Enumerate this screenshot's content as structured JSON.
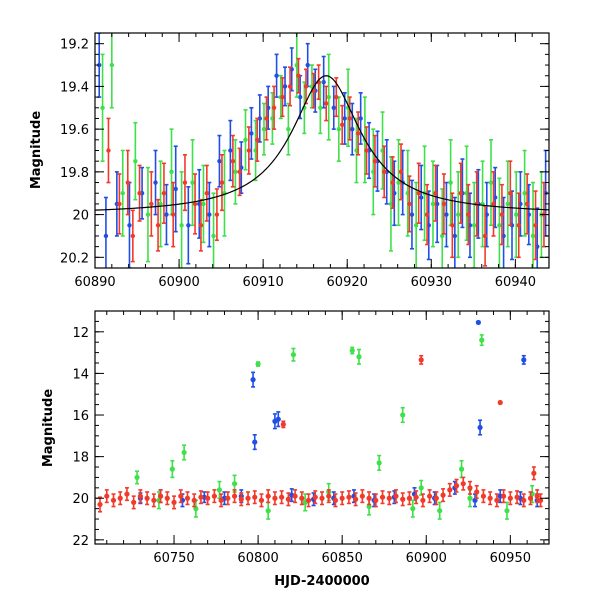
{
  "chart_data": [
    {
      "type": "scatter",
      "panel": "top",
      "title": "",
      "xlabel": "",
      "ylabel": "Magnitude",
      "xlim": [
        60890,
        60944
      ],
      "ylim": [
        20.25,
        19.15
      ],
      "y_inverted": true,
      "x_ticks": [
        60890,
        60900,
        60910,
        60920,
        60930,
        60940
      ],
      "x_tick_labels": [
        "60890",
        "60900",
        "60910",
        "60920",
        "60930",
        "60940"
      ],
      "y_ticks": [
        19.2,
        19.4,
        19.6,
        19.8,
        20,
        20.2
      ],
      "y_tick_labels": [
        "19.2",
        "19.4",
        "19.6",
        "19.8",
        "20",
        "20.2"
      ],
      "legend": "none",
      "model_curve": {
        "name": "microlensing model",
        "color": "#000000",
        "baseline": 20.0,
        "peak_mag": 19.35,
        "peak_time": 60917.5,
        "timescale": 5.0
      },
      "series": [
        {
          "name": "blue",
          "color": "#1f4fe6",
          "x": [
            60890.5,
            60891.3,
            60892.6,
            60894.1,
            60895.6,
            60897.2,
            60898.5,
            60899.6,
            60901.1,
            60902.4,
            60903.6,
            60904.8,
            60906.1,
            60907.4,
            60908.6,
            60909.6,
            60910.6,
            60911.6,
            60912.6,
            60913.4,
            60914.4,
            60915.3,
            60916.2,
            60917.2,
            60918.4,
            60919.7,
            60920.6,
            60921.6,
            60922.6,
            60923.6,
            60924.7,
            60925.6,
            60926.6,
            60927.7,
            60928.8,
            60929.7,
            60930.7,
            60931.8,
            60932.8,
            60933.7,
            60934.6,
            60935.6,
            60936.6,
            60937.6,
            60938.6,
            60939.6,
            60940.6,
            60941.6,
            60942.6,
            60943.6
          ],
          "y": [
            19.3,
            20.1,
            19.95,
            20.05,
            19.9,
            19.85,
            20.0,
            19.88,
            20.05,
            19.95,
            20.0,
            19.75,
            19.7,
            19.78,
            19.62,
            19.55,
            19.5,
            19.35,
            19.4,
            19.32,
            19.45,
            19.3,
            19.42,
            19.38,
            19.5,
            19.55,
            19.6,
            19.55,
            19.7,
            19.75,
            19.8,
            19.9,
            19.85,
            20.0,
            19.92,
            20.05,
            19.95,
            20.0,
            20.1,
            19.9,
            20.05,
            19.95,
            20.0,
            19.92,
            20.1,
            20.05,
            19.95,
            20.0,
            20.15,
            19.9
          ],
          "yerr": [
            0.15,
            0.18,
            0.15,
            0.2,
            0.12,
            0.15,
            0.14,
            0.2,
            0.18,
            0.16,
            0.15,
            0.12,
            0.14,
            0.12,
            0.12,
            0.11,
            0.1,
            0.1,
            0.09,
            0.1,
            0.1,
            0.1,
            0.1,
            0.12,
            0.1,
            0.12,
            0.12,
            0.12,
            0.13,
            0.14,
            0.15,
            0.15,
            0.15,
            0.16,
            0.15,
            0.16,
            0.18,
            0.15,
            0.18,
            0.16,
            0.15,
            0.16,
            0.15,
            0.14,
            0.18,
            0.16,
            0.15,
            0.14,
            0.18,
            0.2
          ]
        },
        {
          "name": "green",
          "color": "#3fe04a",
          "x": [
            60890.9,
            60892.0,
            60893.3,
            60894.8,
            60896.3,
            60897.8,
            60899.1,
            60900.3,
            60901.6,
            60902.9,
            60904.1,
            60905.4,
            60906.7,
            60907.9,
            60909.1,
            60910.1,
            60911.1,
            60912.1,
            60913.0,
            60914.0,
            60914.9,
            60915.8,
            60916.8,
            60917.8,
            60919.0,
            60920.1,
            60921.1,
            60922.1,
            60923.1,
            60924.2,
            60925.2,
            60926.1,
            60927.2,
            60928.2,
            60929.2,
            60930.2,
            60931.3,
            60932.3,
            60933.2,
            60934.2,
            60935.1,
            60936.1,
            60937.1,
            60938.1,
            60939.1,
            60940.1,
            60941.1,
            60942.1,
            60943.1
          ],
          "y": [
            19.5,
            19.3,
            19.9,
            19.75,
            20.0,
            19.95,
            19.8,
            20.05,
            19.85,
            19.95,
            20.1,
            19.9,
            19.8,
            19.65,
            19.7,
            19.6,
            19.55,
            19.45,
            19.6,
            19.3,
            19.5,
            19.4,
            19.5,
            19.45,
            19.6,
            19.5,
            19.7,
            19.65,
            19.8,
            19.7,
            19.95,
            19.85,
            19.9,
            20.05,
            19.9,
            19.95,
            20.1,
            19.85,
            20.0,
            19.9,
            20.05,
            19.95,
            19.85,
            20.05,
            19.95,
            20.0,
            19.9,
            20.1,
            20.0
          ],
          "yerr": [
            0.25,
            0.2,
            0.2,
            0.18,
            0.22,
            0.2,
            0.2,
            0.25,
            0.2,
            0.18,
            0.2,
            0.2,
            0.15,
            0.14,
            0.14,
            0.12,
            0.12,
            0.1,
            0.12,
            0.15,
            0.12,
            0.1,
            0.12,
            0.2,
            0.15,
            0.18,
            0.15,
            0.2,
            0.2,
            0.18,
            0.22,
            0.2,
            0.2,
            0.2,
            0.22,
            0.2,
            0.22,
            0.2,
            0.2,
            0.22,
            0.2,
            0.2,
            0.2,
            0.22,
            0.2,
            0.2,
            0.2,
            0.25,
            0.2
          ]
        },
        {
          "name": "red",
          "color": "#f23a2a",
          "x": [
            60891.6,
            60892.9,
            60893.9,
            60894.5,
            60895.3,
            60896.7,
            60897.5,
            60898.2,
            60899.3,
            60900.7,
            60901.9,
            60902.6,
            60903.3,
            60904.5,
            60905.1,
            60906.4,
            60907.2,
            60908.3,
            60909.3,
            60910.4,
            60911.3,
            60912.3,
            60913.2,
            60914.2,
            60915.1,
            60916.0,
            60916.6,
            60917.5,
            60918.7,
            60919.4,
            60920.3,
            60921.3,
            60922.3,
            60923.3,
            60924.4,
            60925.4,
            60926.4,
            60927.4,
            60928.5,
            60929.5,
            60930.5,
            60931.5,
            60932.5,
            60933.5,
            60934.4,
            60935.4,
            60936.4,
            60937.4,
            60938.4,
            60939.4,
            60940.4,
            60941.4,
            60942.4,
            60943.4
          ],
          "y": [
            19.7,
            19.95,
            19.85,
            20.1,
            19.9,
            19.95,
            20.05,
            19.9,
            20.0,
            19.85,
            19.95,
            20.05,
            19.9,
            20.0,
            19.85,
            19.75,
            19.8,
            19.7,
            19.65,
            19.55,
            19.5,
            19.45,
            19.4,
            19.35,
            19.4,
            19.42,
            19.38,
            19.48,
            19.45,
            19.58,
            19.55,
            19.62,
            19.7,
            19.75,
            19.8,
            19.85,
            19.8,
            19.95,
            19.9,
            20.0,
            19.9,
            19.95,
            20.05,
            19.9,
            20.0,
            19.95,
            20.1,
            19.95,
            20.0,
            19.9,
            20.05,
            19.95,
            20.05,
            20.0
          ],
          "yerr": [
            0.15,
            0.14,
            0.15,
            0.12,
            0.13,
            0.15,
            0.12,
            0.14,
            0.15,
            0.13,
            0.14,
            0.12,
            0.13,
            0.12,
            0.13,
            0.12,
            0.11,
            0.11,
            0.1,
            0.1,
            0.1,
            0.09,
            0.09,
            0.08,
            0.08,
            0.08,
            0.08,
            0.08,
            0.09,
            0.09,
            0.1,
            0.1,
            0.11,
            0.12,
            0.12,
            0.12,
            0.13,
            0.13,
            0.14,
            0.14,
            0.13,
            0.14,
            0.15,
            0.14,
            0.14,
            0.15,
            0.14,
            0.15,
            0.14,
            0.15,
            0.15,
            0.14,
            0.16,
            0.15
          ]
        }
      ]
    },
    {
      "type": "scatter",
      "panel": "bottom",
      "title": "",
      "xlabel": "HJD-2400000",
      "ylabel": "Magnitude",
      "xlim": [
        60703,
        60973
      ],
      "ylim": [
        22.2,
        11.0
      ],
      "y_inverted": true,
      "x_ticks": [
        60750,
        60800,
        60850,
        60900,
        60950
      ],
      "x_tick_labels": [
        "60750",
        "60800",
        "60850",
        "60900",
        "60950"
      ],
      "y_ticks": [
        12,
        14,
        16,
        18,
        20,
        22
      ],
      "y_tick_labels": [
        "12",
        "14",
        "16",
        "18",
        "20",
        "22"
      ],
      "legend": "none",
      "series": [
        {
          "name": "blue",
          "color": "#1f4fe6",
          "x": [
            60730,
            60742,
            60755,
            60768,
            60780,
            60790,
            60797,
            60798,
            60810,
            60812,
            60820,
            60833,
            60845,
            60857,
            60869,
            60881,
            60893,
            60905,
            60917,
            60929,
            60931,
            60932,
            60944,
            60956,
            60958,
            60966
          ],
          "y": [
            20.0,
            19.9,
            20.1,
            19.95,
            20.0,
            19.9,
            14.3,
            17.3,
            16.3,
            16.2,
            19.85,
            20.05,
            20.0,
            19.9,
            20.1,
            19.95,
            19.8,
            20.0,
            19.5,
            20.1,
            11.55,
            16.6,
            19.9,
            20.0,
            13.35,
            20.1
          ],
          "yerr": [
            0.25,
            0.3,
            0.3,
            0.25,
            0.3,
            0.3,
            0.35,
            0.35,
            0.35,
            0.35,
            0.3,
            0.3,
            0.3,
            0.3,
            0.3,
            0.3,
            0.3,
            0.3,
            0.3,
            0.3,
            0.05,
            0.35,
            0.3,
            0.3,
            0.2,
            0.3
          ]
        },
        {
          "name": "green",
          "color": "#3fe04a",
          "x": [
            60728,
            60741,
            60749,
            60756,
            60763,
            60777,
            60786,
            60800,
            60806,
            60821,
            60828,
            60842,
            60856,
            60860,
            60866,
            60872,
            60886,
            60892,
            60897,
            60908,
            60921,
            60926,
            60933,
            60948,
            60963
          ],
          "y": [
            19.0,
            20.1,
            18.6,
            17.8,
            20.5,
            19.6,
            19.3,
            13.55,
            20.6,
            13.1,
            20.2,
            19.7,
            12.9,
            13.2,
            20.4,
            18.3,
            16.0,
            20.5,
            19.5,
            20.6,
            18.6,
            20.0,
            12.4,
            20.6,
            19.8
          ],
          "yerr": [
            0.3,
            0.4,
            0.4,
            0.35,
            0.4,
            0.4,
            0.4,
            0.1,
            0.4,
            0.3,
            0.4,
            0.4,
            0.15,
            0.35,
            0.4,
            0.35,
            0.35,
            0.4,
            0.35,
            0.4,
            0.4,
            0.4,
            0.25,
            0.4,
            0.4
          ]
        },
        {
          "name": "red",
          "color": "#f23a2a",
          "x": [
            60706,
            60710,
            60714,
            60718,
            60722,
            60726,
            60730,
            60734,
            60738,
            60742,
            60746,
            60750,
            60754,
            60758,
            60762,
            60766,
            60770,
            60774,
            60778,
            60782,
            60786,
            60790,
            60794,
            60798,
            60802,
            60806,
            60810,
            60814,
            60815,
            60818,
            60822,
            60826,
            60830,
            60834,
            60838,
            60842,
            60846,
            60850,
            60854,
            60858,
            60862,
            60866,
            60870,
            60874,
            60878,
            60882,
            60886,
            60890,
            60894,
            60897,
            60898,
            60902,
            60906,
            60910,
            60914,
            60918,
            60922,
            60926,
            60930,
            60934,
            60938,
            60942,
            60944,
            60946,
            60950,
            60954,
            60958,
            60962,
            60964,
            60966,
            60968
          ],
          "y": [
            20.3,
            19.9,
            20.1,
            20.0,
            19.8,
            20.2,
            19.9,
            20.0,
            20.1,
            19.9,
            20.0,
            20.2,
            19.9,
            20.0,
            20.1,
            19.95,
            20.0,
            19.9,
            20.1,
            20.0,
            19.9,
            20.05,
            20.0,
            19.95,
            20.1,
            19.9,
            20.0,
            19.95,
            16.45,
            20.05,
            19.9,
            20.0,
            20.1,
            19.95,
            20.0,
            19.9,
            20.1,
            20.0,
            19.95,
            20.05,
            19.9,
            20.0,
            20.1,
            19.95,
            20.0,
            19.9,
            20.05,
            20.0,
            19.95,
            13.35,
            20.1,
            19.9,
            20.0,
            19.85,
            19.6,
            19.4,
            19.3,
            19.5,
            19.7,
            19.9,
            20.0,
            20.1,
            15.4,
            19.9,
            20.0,
            19.95,
            20.1,
            20.0,
            18.8,
            19.9,
            20.1
          ],
          "yerr": [
            0.35,
            0.3,
            0.3,
            0.3,
            0.3,
            0.3,
            0.3,
            0.3,
            0.3,
            0.3,
            0.3,
            0.3,
            0.3,
            0.3,
            0.3,
            0.3,
            0.3,
            0.3,
            0.3,
            0.3,
            0.3,
            0.3,
            0.3,
            0.3,
            0.3,
            0.3,
            0.3,
            0.3,
            0.15,
            0.3,
            0.3,
            0.3,
            0.3,
            0.3,
            0.3,
            0.3,
            0.3,
            0.3,
            0.3,
            0.3,
            0.3,
            0.3,
            0.3,
            0.3,
            0.3,
            0.3,
            0.3,
            0.3,
            0.3,
            0.2,
            0.3,
            0.3,
            0.3,
            0.3,
            0.3,
            0.3,
            0.3,
            0.3,
            0.3,
            0.3,
            0.3,
            0.3,
            0.05,
            0.3,
            0.3,
            0.3,
            0.3,
            0.3,
            0.3,
            0.3,
            0.3
          ]
        }
      ]
    }
  ]
}
